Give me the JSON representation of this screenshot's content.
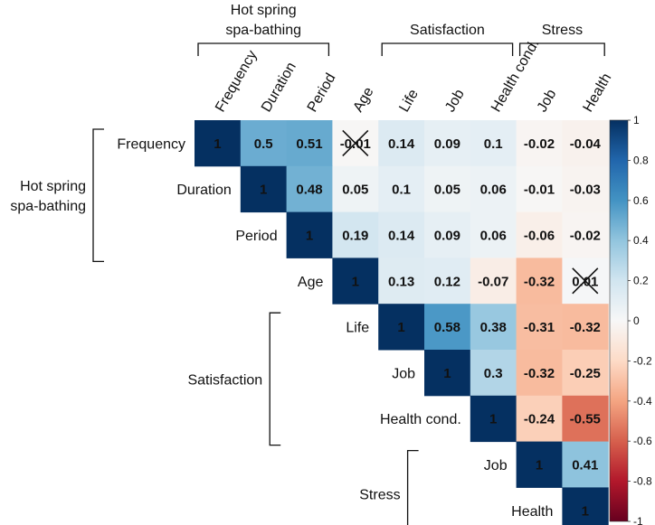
{
  "chart_data": {
    "type": "heatmap",
    "subtype": "upper-triangle correlation matrix",
    "variables": [
      "Frequency",
      "Duration",
      "Period",
      "Age",
      "Life",
      "Job",
      "Health cond.",
      "Job",
      "Health"
    ],
    "row_labels": [
      "Frequency",
      "Duration",
      "Period",
      "Age",
      "Life",
      "Job",
      "Health cond.",
      "Job",
      "Health"
    ],
    "column_labels": [
      "Frequency",
      "Duration",
      "Period",
      "Age",
      "Life",
      "Job",
      "Health cond.",
      "Job",
      "Health"
    ],
    "matrix": [
      [
        1,
        0.5,
        0.51,
        -0.01,
        0.14,
        0.09,
        0.1,
        -0.02,
        -0.04
      ],
      [
        null,
        1,
        0.48,
        0.05,
        0.1,
        0.05,
        0.06,
        -0.01,
        -0.03
      ],
      [
        null,
        null,
        1,
        0.19,
        0.14,
        0.09,
        0.06,
        -0.06,
        -0.02
      ],
      [
        null,
        null,
        null,
        1,
        0.13,
        0.12,
        -0.07,
        -0.32,
        0.01
      ],
      [
        null,
        null,
        null,
        null,
        1,
        0.58,
        0.38,
        -0.31,
        -0.32
      ],
      [
        null,
        null,
        null,
        null,
        null,
        1,
        0.3,
        -0.32,
        -0.25
      ],
      [
        null,
        null,
        null,
        null,
        null,
        null,
        1,
        -0.24,
        -0.55
      ],
      [
        null,
        null,
        null,
        null,
        null,
        null,
        null,
        1,
        0.41
      ],
      [
        null,
        null,
        null,
        null,
        null,
        null,
        null,
        null,
        1
      ]
    ],
    "crossed_out": [
      [
        0,
        3
      ],
      [
        3,
        8
      ]
    ],
    "groups": [
      {
        "name": "Hot spring spa-bathing",
        "lines": [
          "Hot spring",
          "spa-bathing"
        ],
        "start": 0,
        "end": 2
      },
      {
        "name": "Satisfaction",
        "lines": [
          "Satisfaction"
        ],
        "start": 4,
        "end": 6
      },
      {
        "name": "Stress",
        "lines": [
          "Stress"
        ],
        "start": 7,
        "end": 8
      }
    ],
    "colorbar": {
      "range": [
        -1,
        1
      ],
      "ticks": [
        "1",
        "0.8",
        "0.6",
        "0.4",
        "0.2",
        "0",
        "-0.2",
        "-0.4",
        "-0.6",
        "-0.8",
        "-1"
      ],
      "colors": [
        "#053061",
        "#2166ac",
        "#4393c3",
        "#92c5de",
        "#d1e5f0",
        "#f7f7f7",
        "#fddbc7",
        "#f4a582",
        "#d6604d",
        "#b2182b",
        "#67001f"
      ]
    }
  }
}
